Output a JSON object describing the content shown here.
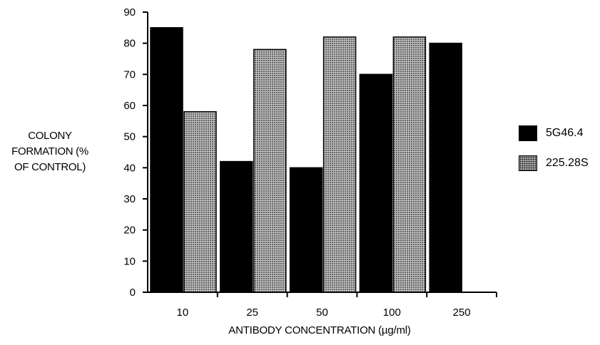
{
  "chart_data": {
    "type": "bar",
    "categories": [
      "10",
      "25",
      "50",
      "100",
      "250"
    ],
    "series": [
      {
        "name": "5G46.4",
        "values": [
          85,
          42,
          40,
          70,
          80
        ],
        "color": "#000000"
      },
      {
        "name": "225.28S",
        "values": [
          58,
          78,
          82,
          82,
          null
        ],
        "color": "#bdbdbd",
        "pattern": "stipple"
      }
    ],
    "ylabel": [
      "COLONY",
      "FORMATION (%",
      "OF CONTROL)"
    ],
    "xlabel": "ANTIBODY CONCENTRATION (µg/ml)",
    "ylim": [
      0,
      90
    ],
    "yticks": [
      0,
      10,
      20,
      30,
      40,
      50,
      60,
      70,
      80,
      90
    ],
    "grid": false,
    "legend_position": "right"
  }
}
